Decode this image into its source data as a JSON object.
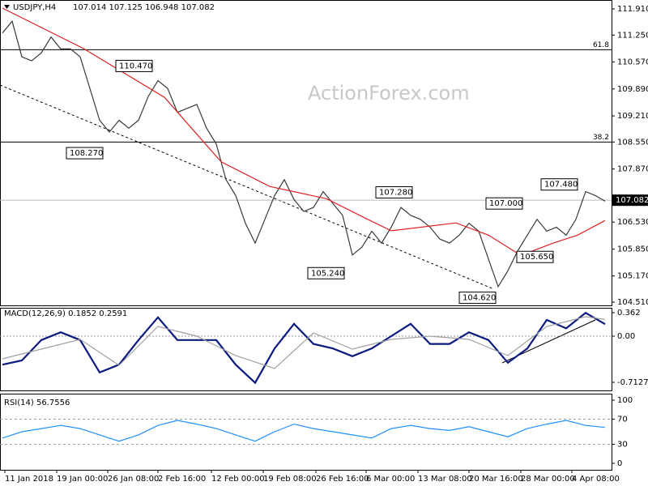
{
  "chart_data": [
    {
      "type": "line",
      "title": "USDJPY,H4",
      "subtitle": "107.014 107.125 106.948 107.082",
      "watermark": "ActionForex.com",
      "xlim": [
        -1.5,
        376
      ],
      "xticks": [
        {
          "value": 1.5,
          "label": "11 Jan 2018"
        },
        {
          "value": 33.5,
          "label": "19 Jan 00:00"
        },
        {
          "value": 65,
          "label": "26 Jan 08:00"
        },
        {
          "value": 96,
          "label": "2 Feb 16:00"
        },
        {
          "value": 129,
          "label": "12 Feb 00:00"
        },
        {
          "value": 161,
          "label": "19 Feb 08:00"
        },
        {
          "value": 193.5,
          "label": "26 Feb 16:00"
        },
        {
          "value": 224.5,
          "label": "6 Mar 00:00"
        },
        {
          "value": 256.5,
          "label": "13 Mar 08:00"
        },
        {
          "value": 288,
          "label": "20 Mar 16:00"
        },
        {
          "value": 320,
          "label": "28 Mar 00:00"
        },
        {
          "value": 351.5,
          "label": "4 Apr 08:00"
        }
      ],
      "ylim": [
        104.428,
        112.135
      ],
      "yticks": [
        {
          "value": 111.91,
          "label": "111.910"
        },
        {
          "value": 111.25,
          "label": "111.250"
        },
        {
          "value": 110.57,
          "label": "110.570"
        },
        {
          "value": 109.89,
          "label": "109.890"
        },
        {
          "value": 109.21,
          "label": "109.210"
        },
        {
          "value": 108.55,
          "label": "108.550"
        },
        {
          "value": 107.87,
          "label": "107.870"
        },
        {
          "value": 106.53,
          "label": "106.530"
        },
        {
          "value": 105.85,
          "label": "105.850"
        },
        {
          "value": 105.17,
          "label": "105.170"
        },
        {
          "value": 104.51,
          "label": "104.510"
        }
      ],
      "last": 107.082,
      "levels": [
        {
          "label": "61.8",
          "value": 110.88
        },
        {
          "label": "38.2",
          "value": 108.55
        }
      ],
      "annotations": [
        {
          "label": "110.470",
          "value": 110.47
        },
        {
          "label": "108.270",
          "value": 108.27
        },
        {
          "label": "107.280",
          "value": 107.28
        },
        {
          "label": "105.240",
          "value": 105.24
        },
        {
          "label": "107.000",
          "value": 107.0
        },
        {
          "label": "105.650",
          "value": 105.65
        },
        {
          "label": "107.480",
          "value": 107.48
        },
        {
          "label": "104.620",
          "value": 104.62
        }
      ],
      "series": [
        {
          "name": "USDJPY",
          "color": "#3a3a3a",
          "x": [
            0,
            6,
            12,
            18,
            24,
            30,
            36,
            42,
            48,
            54,
            60,
            66,
            72,
            78,
            84,
            90,
            96,
            102,
            108,
            114,
            120,
            126,
            132,
            138,
            144,
            150,
            156,
            162,
            168,
            174,
            180,
            186,
            192,
            198,
            204,
            210,
            216,
            222,
            228,
            234,
            240,
            246,
            252,
            258,
            264,
            270,
            276,
            282,
            288,
            294,
            300,
            306,
            312,
            318,
            324,
            330,
            336,
            342,
            348,
            354,
            360,
            366,
            372
          ],
          "values": [
            111.3,
            111.6,
            110.7,
            110.6,
            110.8,
            111.2,
            110.9,
            110.9,
            110.7,
            109.9,
            109.1,
            108.8,
            109.1,
            108.9,
            109.1,
            109.7,
            110.1,
            109.9,
            109.3,
            109.4,
            109.5,
            108.9,
            108.5,
            107.6,
            107.2,
            106.5,
            106.0,
            106.6,
            107.2,
            107.6,
            107.1,
            106.8,
            106.9,
            107.3,
            107.0,
            106.7,
            105.7,
            105.9,
            106.3,
            106.0,
            106.4,
            106.9,
            106.7,
            106.6,
            106.4,
            106.1,
            106.0,
            106.2,
            106.5,
            106.3,
            105.6,
            104.9,
            105.3,
            105.8,
            106.2,
            106.6,
            106.3,
            106.4,
            106.2,
            106.6,
            107.3,
            107.2,
            107.06
          ]
        },
        {
          "name": "MA",
          "color": "#e02020",
          "x": [
            0,
            50,
            100,
            135,
            165,
            200,
            225,
            240,
            280,
            300,
            320,
            340,
            355,
            372
          ],
          "values": [
            111.93,
            110.91,
            109.68,
            108.05,
            107.43,
            107.12,
            106.61,
            106.31,
            106.51,
            106.2,
            105.69,
            106.0,
            106.2,
            106.57
          ]
        }
      ]
    },
    {
      "type": "line",
      "label": "MACD(12,26,9) 0.1852 0.2591",
      "xlim": [
        -1.5,
        376
      ],
      "ylim": [
        -0.8375,
        0.4375
      ],
      "yticks": [
        0.362,
        {
          "value": 0,
          "label": "0.00"
        },
        -0.7127
      ],
      "series": [
        {
          "name": "MACD",
          "color": "#0a1a80",
          "x": [
            0,
            12,
            24,
            36,
            48,
            60,
            72,
            84,
            96,
            108,
            120,
            132,
            144,
            156,
            168,
            180,
            192,
            204,
            216,
            228,
            240,
            252,
            264,
            276,
            288,
            300,
            312,
            324,
            336,
            348,
            360,
            372
          ],
          "values": [
            -0.44,
            -0.375,
            -0.06,
            0.06,
            -0.06,
            -0.56,
            -0.44,
            -0.06,
            0.29,
            -0.06,
            -0.06,
            -0.06,
            -0.44,
            -0.72,
            -0.19,
            0.19,
            -0.12,
            -0.19,
            -0.31,
            -0.19,
            0,
            0.19,
            -0.12,
            -0.12,
            0.06,
            -0.06,
            -0.41,
            -0.19,
            0.25,
            0.12,
            0.36,
            0.1852
          ]
        },
        {
          "name": "Signal",
          "color": "#a0a0a0",
          "x": [
            0,
            24,
            48,
            72,
            96,
            120,
            144,
            168,
            192,
            216,
            240,
            264,
            288,
            312,
            336,
            360,
            372
          ],
          "values": [
            -0.35,
            -0.2,
            -0.05,
            -0.45,
            0.15,
            0,
            -0.3,
            -0.5,
            0.05,
            -0.2,
            -0.05,
            0,
            -0.05,
            -0.3,
            0.15,
            0.3,
            0.2591
          ]
        }
      ]
    },
    {
      "type": "line",
      "label": "RSI(14) 56.7556",
      "xlim": [
        -1.5,
        376
      ],
      "ylim": [
        -10.3,
        109
      ],
      "yticks": [
        100,
        70,
        30,
        0
      ],
      "levels": [
        70,
        30
      ],
      "series": [
        {
          "name": "RSI",
          "color": "#1e90ff",
          "x": [
            0,
            12,
            24,
            36,
            48,
            60,
            72,
            84,
            96,
            108,
            120,
            132,
            144,
            156,
            168,
            180,
            192,
            204,
            216,
            228,
            240,
            252,
            264,
            276,
            288,
            300,
            312,
            324,
            336,
            348,
            360,
            372
          ],
          "values": [
            40,
            50,
            55,
            60,
            55,
            45,
            35,
            45,
            60,
            68,
            62,
            55,
            45,
            35,
            50,
            62,
            55,
            50,
            45,
            40,
            55,
            60,
            55,
            52,
            58,
            50,
            42,
            55,
            62,
            68,
            60,
            56.7556
          ]
        }
      ]
    }
  ]
}
